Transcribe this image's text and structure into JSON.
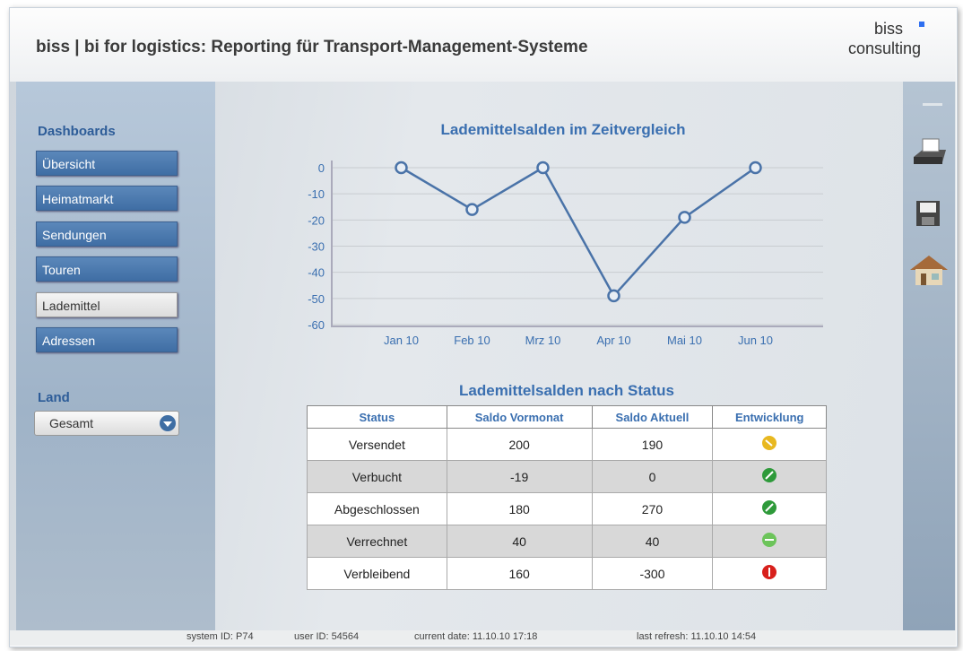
{
  "header": {
    "title": "biss | bi for logistics: Reporting für Transport-Management-Systeme",
    "logo_line1": "biss",
    "logo_line2": "consulting"
  },
  "sidebar": {
    "section": "Dashboards",
    "items": [
      "Übersicht",
      "Heimatmarkt",
      "Sendungen",
      "Touren",
      "Lademittel",
      "Adressen"
    ],
    "land_label": "Land",
    "land_value": "Gesamt"
  },
  "chart_data": {
    "type": "line",
    "title": "Lademittelsalden im Zeitvergleich",
    "categories": [
      "Jan 10",
      "Feb 10",
      "Mrz 10",
      "Apr 10",
      "Mai 10",
      "Jun 10"
    ],
    "values": [
      0,
      -16,
      0,
      -49,
      -19,
      0
    ],
    "color": "#4a73a8",
    "ylim": [
      -60,
      0
    ],
    "yticks": [
      0,
      -10,
      -20,
      -30,
      -40,
      -50,
      -60
    ],
    "grid": true
  },
  "table": {
    "title": "Lademittelsalden nach Status",
    "columns": [
      "Status",
      "Saldo Vormonat",
      "Saldo Aktuell",
      "Entwicklung"
    ],
    "rows": [
      [
        "Versendet",
        200,
        190
      ],
      [
        "Verbucht",
        -19,
        0
      ],
      [
        "Abgeschlossen",
        180,
        270
      ],
      [
        "Verrechnet",
        40,
        40
      ],
      [
        "Verbleibend",
        160,
        -300
      ]
    ]
  },
  "footer": {
    "system_id": "system ID:  P74",
    "user_id": "user ID:  54564",
    "current_date": "current date:  11.10.10 17:18",
    "last_refresh": "last refresh:  11.10.10 14:54"
  }
}
